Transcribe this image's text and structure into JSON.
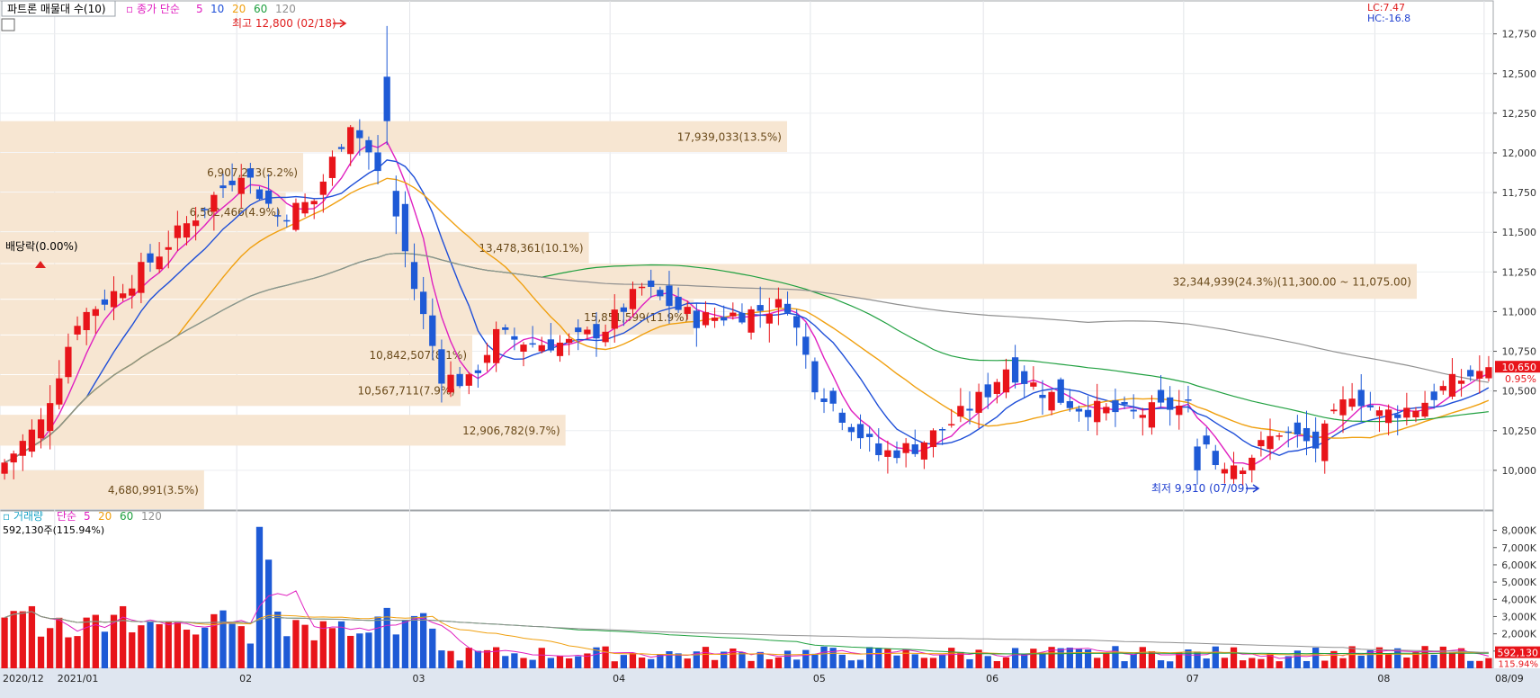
{
  "legend_top": {
    "title": "파트론 매물대 수(10)",
    "ma_prefix": "종가 단순",
    "periods": [
      "5",
      "10",
      "20",
      "60",
      "120"
    ],
    "colors": [
      "#e020c0",
      "#1f4fd8",
      "#f0a010",
      "#20a040",
      "#909090"
    ]
  },
  "legend_bottom": {
    "title": "거래량",
    "ma_prefix": "단순",
    "periods": [
      "5",
      "20",
      "60",
      "120"
    ],
    "colors": [
      "#e020c0",
      "#f0a010",
      "#20a040",
      "#909090"
    ],
    "last_volume_text": "592,130주(115.94%)"
  },
  "corner": {
    "lc": "LC:7.47",
    "hc": "HC:-16.8"
  },
  "annotations": {
    "high_text": "최고 12,800 (02/18)",
    "low_text": "최저 9,910 (07/09)",
    "dividend_text": "배당락(0.00%)"
  },
  "price_badge": {
    "value": "10,650",
    "change": "0.95%"
  },
  "volume_badge": {
    "value": "592,130",
    "change": "115.94%"
  },
  "chart_data": {
    "type": "candlestick",
    "price_axis": {
      "min": 9750,
      "max": 12850,
      "ticks": [
        10000,
        10250,
        10500,
        10750,
        11000,
        11250,
        11500,
        11750,
        12000,
        12250,
        12500,
        12750
      ],
      "tick_labels": [
        "10,000",
        "10,250",
        "10,500",
        "10,750",
        "11,000",
        "11,250",
        "11,500",
        "11,750",
        "12,000",
        "12,250",
        "12,500",
        "12,750"
      ]
    },
    "volume_axis": {
      "min": 0,
      "max": 8500,
      "ticks": [
        1000,
        2000,
        3000,
        4000,
        5000,
        6000,
        7000,
        8000
      ],
      "tick_labels": [
        "1,000K",
        "2,000K",
        "3,000K",
        "4,000K",
        "5,000K",
        "6,000K",
        "7,000K",
        "8,000K"
      ]
    },
    "x_axis": {
      "labels": [
        "2020/12",
        "2021/01",
        "02",
        "03",
        "04",
        "05",
        "06",
        "07",
        "08",
        "08/09"
      ],
      "label_days": [
        0,
        6,
        26,
        45,
        67,
        89,
        108,
        130,
        151,
        163
      ]
    },
    "volume_profile": [
      {
        "low": 9750,
        "high": 10000,
        "label": "4,680,991(3.5%)"
      },
      {
        "low": 10150,
        "high": 10350,
        "label": "12,906,782(9.7%)"
      },
      {
        "low": 10400,
        "high": 10600,
        "label": "10,567,711(7.9%)"
      },
      {
        "low": 10600,
        "high": 10850,
        "label": "10,842,507(8.1%)"
      },
      {
        "low": 10850,
        "high": 11075,
        "label": "15,851,599(11.9%)"
      },
      {
        "low": 11075,
        "high": 11300,
        "label": "32,344,939(24.3%)(11,300.00 ~ 11,075.00)"
      },
      {
        "low": 11300,
        "high": 11500,
        "label": "13,478,361(10.1%)"
      },
      {
        "low": 11500,
        "high": 11750,
        "label": "6,562,466(4.9%)"
      },
      {
        "low": 11750,
        "high": 12000,
        "label": "6,907,273(5.2%)"
      },
      {
        "low": 12000,
        "high": 12200,
        "label": "17,939,033(13.5%)"
      }
    ]
  }
}
